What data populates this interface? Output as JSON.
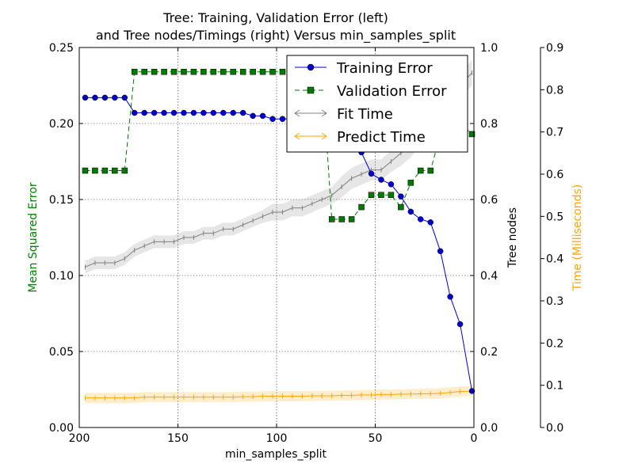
{
  "chart_data": {
    "type": "line",
    "title_line1": "Tree: Training, Validation Error (left)",
    "title_line2": "and Tree nodes/Timings (right) Versus min_samples_split",
    "xlabel": "min_samples_split",
    "ylabel_left": "Mean Squared Error",
    "ylabel_right": "Tree nodes",
    "ylabel_time": "Time (Milliseconds)",
    "xlim": [
      200,
      0
    ],
    "ylim_left": [
      0,
      0.25
    ],
    "ylim_right": [
      0,
      1.0
    ],
    "ylim_time": [
      0,
      0.9
    ],
    "x_ticks": [
      "200",
      "150",
      "100",
      "50",
      "0"
    ],
    "y_left_ticks": [
      "0.00",
      "0.05",
      "0.10",
      "0.15",
      "0.20",
      "0.25"
    ],
    "y_right_ticks": [
      "0.0",
      "0.2",
      "0.4",
      "0.6",
      "0.8",
      "1.0"
    ],
    "y_time_ticks": [
      "0.0",
      "0.1",
      "0.2",
      "0.3",
      "0.4",
      "0.5",
      "0.6",
      "0.7",
      "0.8",
      "0.9"
    ],
    "grid": true,
    "legend_position": "top-right",
    "colors": {
      "training": "#0000cc",
      "validation": "#007700",
      "fit": "#808080",
      "predict": "#ffa500",
      "ylabel_left": "#008000",
      "ylabel_time": "#ffa500"
    },
    "series": [
      {
        "name": "Training Error",
        "axis": "left",
        "marker": "circle",
        "x": [
          197,
          192,
          187,
          182,
          177,
          172,
          167,
          162,
          157,
          152,
          147,
          142,
          137,
          132,
          127,
          122,
          117,
          112,
          107,
          102,
          97,
          92,
          87,
          82,
          77,
          72,
          67,
          62,
          57,
          52,
          47,
          42,
          37,
          32,
          27,
          22,
          17,
          12,
          7,
          1
        ],
        "values": [
          0.217,
          0.217,
          0.217,
          0.217,
          0.217,
          0.207,
          0.207,
          0.207,
          0.207,
          0.207,
          0.207,
          0.207,
          0.207,
          0.207,
          0.207,
          0.207,
          0.207,
          0.205,
          0.205,
          0.203,
          0.203,
          0.203,
          0.203,
          0.203,
          0.203,
          0.203,
          0.2,
          0.195,
          0.181,
          0.167,
          0.163,
          0.16,
          0.152,
          0.142,
          0.137,
          0.135,
          0.116,
          0.086,
          0.068,
          0.024
        ]
      },
      {
        "name": "Validation Error",
        "axis": "left",
        "marker": "square",
        "x": [
          197,
          192,
          187,
          182,
          177,
          172,
          167,
          162,
          157,
          152,
          147,
          142,
          137,
          132,
          127,
          122,
          117,
          112,
          107,
          102,
          97,
          92,
          87,
          82,
          77,
          72,
          67,
          62,
          57,
          52,
          47,
          42,
          37,
          32,
          27,
          22,
          17,
          12,
          7,
          1
        ],
        "values": [
          0.169,
          0.169,
          0.169,
          0.169,
          0.169,
          0.234,
          0.234,
          0.234,
          0.234,
          0.234,
          0.234,
          0.234,
          0.234,
          0.234,
          0.234,
          0.234,
          0.234,
          0.234,
          0.234,
          0.234,
          0.234,
          0.234,
          0.234,
          0.234,
          0.234,
          0.137,
          0.137,
          0.137,
          0.145,
          0.153,
          0.153,
          0.153,
          0.145,
          0.161,
          0.169,
          0.169,
          0.193,
          0.2,
          0.2,
          0.193
        ]
      },
      {
        "name": "Fit Time",
        "axis": "time",
        "marker": "tick",
        "x": [
          197,
          192,
          187,
          182,
          177,
          172,
          167,
          162,
          157,
          152,
          147,
          142,
          137,
          132,
          127,
          122,
          117,
          112,
          107,
          102,
          97,
          92,
          87,
          82,
          77,
          72,
          67,
          62,
          57,
          52,
          47,
          42,
          37,
          32,
          27,
          22,
          17,
          12,
          7,
          1
        ],
        "values": [
          0.38,
          0.39,
          0.39,
          0.39,
          0.4,
          0.42,
          0.43,
          0.44,
          0.44,
          0.44,
          0.45,
          0.45,
          0.46,
          0.46,
          0.47,
          0.47,
          0.48,
          0.49,
          0.5,
          0.51,
          0.51,
          0.52,
          0.52,
          0.53,
          0.54,
          0.55,
          0.57,
          0.59,
          0.6,
          0.61,
          0.61,
          0.63,
          0.65,
          0.67,
          0.7,
          0.72,
          0.75,
          0.78,
          0.81,
          0.84
        ],
        "band": [
          0.015,
          0.015,
          0.015,
          0.015,
          0.015,
          0.015,
          0.015,
          0.015,
          0.015,
          0.015,
          0.015,
          0.015,
          0.015,
          0.015,
          0.015,
          0.015,
          0.015,
          0.015,
          0.015,
          0.02,
          0.02,
          0.02,
          0.02,
          0.02,
          0.02,
          0.02,
          0.025,
          0.025,
          0.025,
          0.025,
          0.025,
          0.025,
          0.03,
          0.03,
          0.03,
          0.03,
          0.03,
          0.03,
          0.03,
          0.03
        ]
      },
      {
        "name": "Predict Time",
        "axis": "time",
        "marker": "tick",
        "x": [
          197,
          192,
          187,
          182,
          177,
          172,
          167,
          162,
          157,
          152,
          147,
          142,
          137,
          132,
          127,
          122,
          117,
          112,
          107,
          102,
          97,
          92,
          87,
          82,
          77,
          72,
          67,
          62,
          57,
          52,
          47,
          42,
          37,
          32,
          27,
          22,
          17,
          12,
          7,
          1
        ],
        "values": [
          0.07,
          0.07,
          0.07,
          0.07,
          0.07,
          0.07,
          0.072,
          0.072,
          0.072,
          0.072,
          0.072,
          0.072,
          0.072,
          0.072,
          0.072,
          0.072,
          0.073,
          0.073,
          0.074,
          0.074,
          0.074,
          0.074,
          0.074,
          0.075,
          0.075,
          0.075,
          0.076,
          0.076,
          0.077,
          0.077,
          0.078,
          0.078,
          0.079,
          0.079,
          0.08,
          0.08,
          0.081,
          0.083,
          0.085,
          0.086
        ],
        "band": [
          0.012,
          0.012,
          0.012,
          0.012,
          0.012,
          0.012,
          0.012,
          0.012,
          0.012,
          0.012,
          0.012,
          0.012,
          0.012,
          0.012,
          0.012,
          0.012,
          0.012,
          0.012,
          0.012,
          0.012,
          0.012,
          0.012,
          0.012,
          0.012,
          0.012,
          0.012,
          0.012,
          0.012,
          0.012,
          0.012,
          0.012,
          0.012,
          0.012,
          0.012,
          0.012,
          0.012,
          0.012,
          0.012,
          0.012,
          0.012
        ]
      }
    ]
  }
}
